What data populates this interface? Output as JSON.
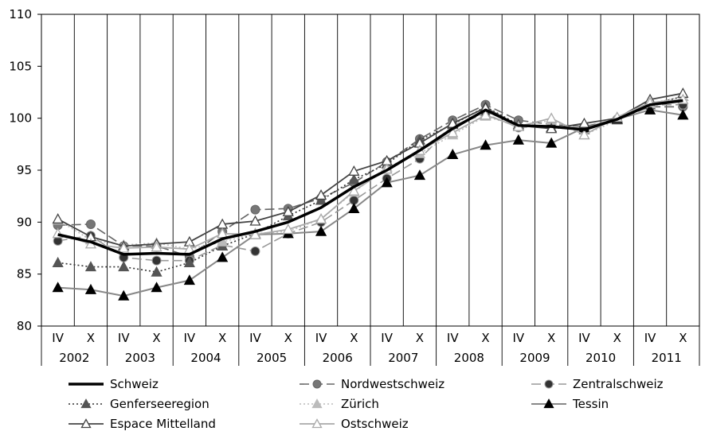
{
  "chart_data": {
    "type": "line",
    "title": "",
    "xlabel": "",
    "ylabel": "",
    "ylim": [
      80,
      110
    ],
    "yticks": [
      80,
      85,
      90,
      95,
      100,
      105,
      110
    ],
    "grid": "vertical lines between years",
    "legend_position": "bottom",
    "month_labels": [
      "IV",
      "X"
    ],
    "years": [
      "2002",
      "2003",
      "2004",
      "2005",
      "2006",
      "2007",
      "2008",
      "2009",
      "2010",
      "2011"
    ],
    "categories": [
      "IV 2002",
      "X 2002",
      "IV 2003",
      "X 2003",
      "IV 2004",
      "X 2004",
      "IV 2005",
      "X 2005",
      "IV 2006",
      "X 2006",
      "IV 2007",
      "X 2007",
      "IV 2008",
      "X 2008",
      "IV 2009",
      "X 2009",
      "IV 2010",
      "X 2010",
      "IV 2011",
      "X 2011"
    ],
    "series": [
      {
        "name": "Schweiz",
        "color": "#000000",
        "dash": "",
        "width": 3.5,
        "marker": "none",
        "markerFill": "none",
        "values": [
          88.8,
          88.1,
          86.9,
          87.0,
          86.9,
          88.4,
          89.1,
          90.0,
          91.4,
          93.4,
          95.0,
          96.9,
          99.0,
          100.8,
          99.3,
          99.2,
          98.9,
          99.9,
          101.3,
          101.7
        ]
      },
      {
        "name": "Nordwestschweiz",
        "color": "#666666",
        "dash": "12,5",
        "width": 1.6,
        "marker": "circle",
        "markerFill": "#777777",
        "values": [
          89.7,
          89.8,
          87.7,
          87.7,
          86.7,
          89.1,
          91.2,
          91.3,
          92.3,
          93.8,
          95.8,
          98.0,
          99.8,
          101.3,
          99.8,
          99.4,
          99.2,
          99.9,
          101.1,
          101.1
        ]
      },
      {
        "name": "Zentralschweiz",
        "color": "#999999",
        "dash": "12,5",
        "width": 1.6,
        "marker": "circle",
        "markerFill": "#333333",
        "values": [
          88.2,
          88.7,
          86.6,
          86.3,
          86.3,
          87.8,
          87.2,
          88.9,
          90.0,
          92.1,
          94.2,
          96.1,
          99.3,
          100.4,
          99.1,
          99.3,
          99.0,
          99.9,
          101.3,
          101.3
        ]
      },
      {
        "name": "Genferseeregion",
        "color": "#333333",
        "dash": "2,3",
        "width": 1.6,
        "marker": "triangle",
        "markerFill": "#555555",
        "values": [
          86.1,
          85.7,
          85.7,
          85.2,
          86.1,
          87.7,
          88.9,
          90.6,
          92.1,
          94.1,
          95.6,
          97.9,
          99.4,
          101.1,
          99.4,
          99.1,
          98.9,
          99.9,
          101.3,
          102.1
        ]
      },
      {
        "name": "Zürich",
        "color": "#bbbbbb",
        "dash": "2,3",
        "width": 1.6,
        "marker": "triangle",
        "markerFill": "#bbbbbb",
        "values": [
          90.2,
          88.3,
          87.8,
          88.0,
          87.4,
          88.1,
          88.9,
          89.1,
          90.3,
          92.9,
          95.3,
          96.6,
          98.4,
          100.2,
          99.2,
          99.8,
          98.4,
          99.8,
          101.4,
          102.1
        ]
      },
      {
        "name": "Tessin",
        "color": "#888888",
        "dash": "",
        "width": 2,
        "marker": "triangle",
        "markerFill": "#000000",
        "values": [
          83.7,
          83.5,
          82.9,
          83.7,
          84.4,
          86.6,
          88.8,
          88.9,
          89.1,
          91.3,
          93.8,
          94.5,
          96.5,
          97.4,
          97.9,
          97.6,
          99.1,
          99.9,
          100.8,
          100.3
        ]
      },
      {
        "name": "Espace Mittelland",
        "color": "#444444",
        "dash": "",
        "width": 1.8,
        "marker": "triangle",
        "markerFill": "#ffffff",
        "values": [
          90.3,
          88.6,
          87.7,
          87.9,
          88.1,
          89.8,
          90.1,
          91.0,
          92.6,
          94.9,
          95.9,
          97.6,
          99.5,
          101.0,
          99.3,
          99.0,
          99.5,
          100.0,
          101.8,
          102.4
        ]
      },
      {
        "name": "Ostschweiz",
        "color": "#aaaaaa",
        "dash": "",
        "width": 1.8,
        "marker": "triangle",
        "markerFill": "#ffffff",
        "values": [
          88.9,
          87.9,
          87.5,
          87.6,
          87.4,
          88.9,
          88.8,
          89.3,
          90.3,
          93.0,
          95.1,
          96.9,
          98.6,
          100.3,
          99.2,
          100.0,
          98.4,
          100.1,
          101.5,
          101.8
        ]
      }
    ]
  }
}
